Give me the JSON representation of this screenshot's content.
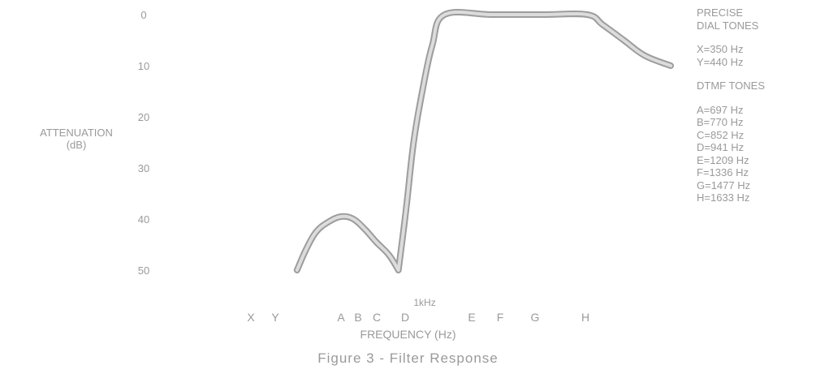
{
  "chart_data": {
    "type": "line",
    "title": "Figure 3 - Filter Response",
    "xlabel": "FREQUENCY (Hz)",
    "ylabel_line1": "ATTENUATION",
    "ylabel_line2": "(dB)",
    "y_ticks": [
      "0",
      "10",
      "20",
      "30",
      "40",
      "50"
    ],
    "ylim": [
      0,
      50
    ],
    "y_reversed": true,
    "x_markers": [
      {
        "label": "X",
        "hz": 350
      },
      {
        "label": "Y",
        "hz": 440
      },
      {
        "label": "A",
        "hz": 697
      },
      {
        "label": "B",
        "hz": 770
      },
      {
        "label": "C",
        "hz": 852
      },
      {
        "label": "D",
        "hz": 941
      },
      {
        "label": "E",
        "hz": 1209
      },
      {
        "label": "F",
        "hz": 1336
      },
      {
        "label": "G",
        "hz": 1477
      },
      {
        "label": "H",
        "hz": 1633
      }
    ],
    "x_annotation": {
      "label": "1kHz",
      "hz": 1000
    },
    "series": [
      {
        "points": [
          {
            "hz": 525,
            "db": 50
          },
          {
            "hz": 560,
            "db": 46
          },
          {
            "hz": 600,
            "db": 42.5
          },
          {
            "hz": 650,
            "db": 40.5
          },
          {
            "hz": 700,
            "db": 39.5
          },
          {
            "hz": 750,
            "db": 40
          },
          {
            "hz": 800,
            "db": 42
          },
          {
            "hz": 850,
            "db": 44.5
          },
          {
            "hz": 890,
            "db": 47
          },
          {
            "hz": 920,
            "db": 50
          },
          {
            "hz": 945,
            "db": 38
          },
          {
            "hz": 975,
            "db": 25
          },
          {
            "hz": 1010,
            "db": 15
          },
          {
            "hz": 1050,
            "db": 6
          },
          {
            "hz": 1100,
            "db": 0
          },
          {
            "hz": 1300,
            "db": 0
          },
          {
            "hz": 1500,
            "db": 0
          },
          {
            "hz": 1650,
            "db": 0
          },
          {
            "hz": 1800,
            "db": 2
          },
          {
            "hz": 2000,
            "db": 5
          },
          {
            "hz": 2200,
            "db": 8
          },
          {
            "hz": 2450,
            "db": 10
          }
        ]
      }
    ],
    "line_color": "#a8a8a8"
  },
  "legend": {
    "precise_line1": "PRECISE",
    "precise_line2": "DIAL TONES",
    "precise_items": [
      "X=350 Hz",
      "Y=440 Hz"
    ],
    "dtmf_heading": "DTMF TONES",
    "dtmf_items": [
      "A=697 Hz",
      "B=770 Hz",
      "C=852 Hz",
      "D=941 Hz",
      "E=1209 Hz",
      "F=1336 Hz",
      "G=1477 Hz",
      "H=1633 Hz"
    ]
  }
}
